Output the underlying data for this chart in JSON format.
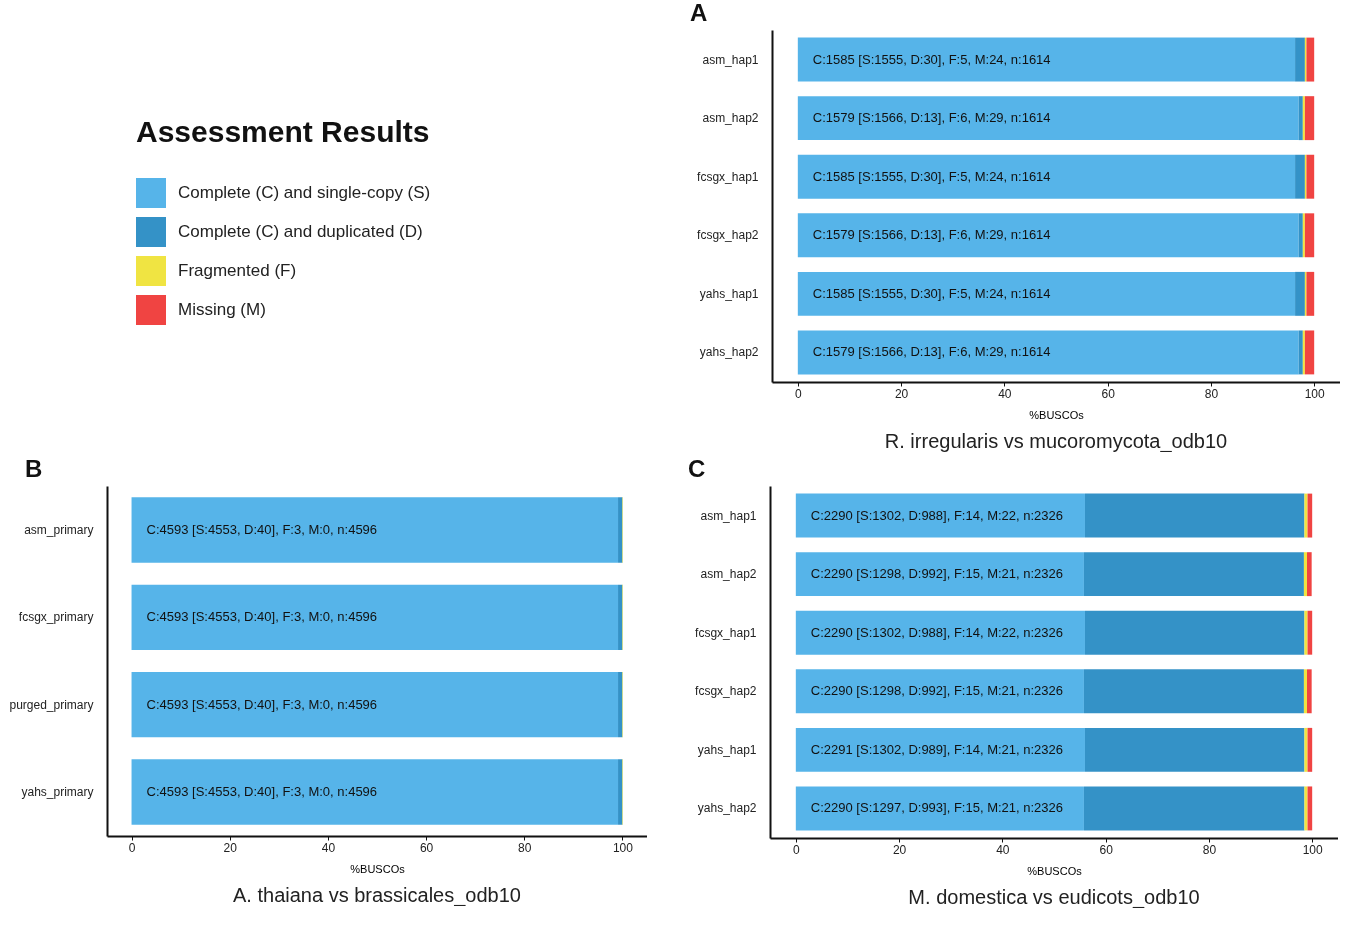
{
  "chart_data": [
    {
      "type": "bar",
      "orientation": "horizontal",
      "stacked": true,
      "title": "A",
      "subtitle": "R. irregularis vs mucoromycota_odb10",
      "xlabel": "%BUSCOs",
      "legend": "left",
      "legend_title": "Assessment Results",
      "categories": [
        "asm_hap1",
        "asm_hap2",
        "fcsgx_hap1",
        "fcsgx_hap2",
        "yahs_hap1",
        "yahs_hap2"
      ],
      "xlim": [
        -5,
        105
      ],
      "xticks": [
        0,
        20,
        40,
        60,
        80,
        100
      ],
      "series": [
        {
          "name": "Complete (C) and single-copy (S)",
          "color": "#56b4e9",
          "values": [
            96.3,
            97.0,
            96.3,
            97.0,
            96.3,
            97.0
          ],
          "value_labels": [
            "C:1585 [S:1555, D:30], F:5, M:24, n:1614",
            "C:1579 [S:1566, D:13], F:6, M:29, n:1614",
            "C:1585 [S:1555, D:30], F:5, M:24, n:1614",
            "C:1579 [S:1566, D:13], F:6, M:29, n:1614",
            "C:1585 [S:1555, D:30], F:5, M:24, n:1614",
            "C:1579 [S:1566, D:13], F:6, M:29, n:1614"
          ]
        },
        {
          "name": "Complete (C) and duplicated (D)",
          "color": "#3492c7",
          "values": [
            1.9,
            0.8,
            1.9,
            0.8,
            1.9,
            0.8
          ]
        },
        {
          "name": "Fragmented (F)",
          "color": "#f0e442",
          "values": [
            0.3,
            0.4,
            0.3,
            0.4,
            0.3,
            0.4
          ]
        },
        {
          "name": "Missing (M)",
          "color": "#f04442",
          "values": [
            1.5,
            1.8,
            1.5,
            1.8,
            1.5,
            1.8
          ]
        }
      ]
    },
    {
      "type": "bar",
      "orientation": "horizontal",
      "stacked": true,
      "title": "B",
      "subtitle": "A. thaiana vs brassicales_odb10",
      "xlabel": "%BUSCOs",
      "categories": [
        "asm_primary",
        "fcsgx_primary",
        "purged_primary",
        "yahs_primary"
      ],
      "xlim": [
        -5,
        105
      ],
      "xticks": [
        0,
        20,
        40,
        60,
        80,
        100
      ],
      "series": [
        {
          "color": "#56b4e9",
          "values": [
            99.1,
            99.1,
            99.1,
            99.1
          ],
          "value_labels": [
            "C:4593 [S:4553, D:40], F:3, M:0, n:4596",
            "C:4593 [S:4553, D:40], F:3, M:0, n:4596",
            "C:4593 [S:4553, D:40], F:3, M:0, n:4596",
            "C:4593 [S:4553, D:40], F:3, M:0, n:4596"
          ]
        },
        {
          "color": "#3492c7",
          "values": [
            0.9,
            0.9,
            0.9,
            0.9
          ]
        },
        {
          "color": "#f0e442",
          "values": [
            0.1,
            0.1,
            0.1,
            0.1
          ]
        },
        {
          "color": "#f04442",
          "values": [
            0,
            0,
            0,
            0
          ]
        }
      ]
    },
    {
      "type": "bar",
      "orientation": "horizontal",
      "stacked": true,
      "title": "C",
      "subtitle": "M. domestica vs eudicots_odb10",
      "xlabel": "%BUSCOs",
      "categories": [
        "asm_hap1",
        "asm_hap2",
        "fcsgx_hap1",
        "fcsgx_hap2",
        "yahs_hap1",
        "yahs_hap2"
      ],
      "xlim": [
        -5,
        105
      ],
      "xticks": [
        0,
        20,
        40,
        60,
        80,
        100
      ],
      "series": [
        {
          "color": "#56b4e9",
          "values": [
            56.0,
            55.8,
            56.0,
            55.8,
            56.0,
            55.8
          ],
          "value_labels": [
            "C:2290 [S:1302, D:988], F:14, M:22, n:2326",
            "C:2290 [S:1298, D:992], F:15, M:21, n:2326",
            "C:2290 [S:1302, D:988], F:14, M:22, n:2326",
            "C:2290 [S:1298, D:992], F:15, M:21, n:2326",
            "C:2291 [S:1302, D:989], F:14, M:21, n:2326",
            "C:2290 [S:1297, D:993], F:15, M:21, n:2326"
          ]
        },
        {
          "color": "#3492c7",
          "values": [
            42.5,
            42.6,
            42.5,
            42.6,
            42.5,
            42.7
          ]
        },
        {
          "color": "#f0e442",
          "values": [
            0.6,
            0.6,
            0.6,
            0.6,
            0.6,
            0.6
          ]
        },
        {
          "color": "#f04442",
          "values": [
            0.9,
            0.9,
            0.9,
            0.9,
            0.9,
            0.9
          ]
        }
      ]
    }
  ]
}
